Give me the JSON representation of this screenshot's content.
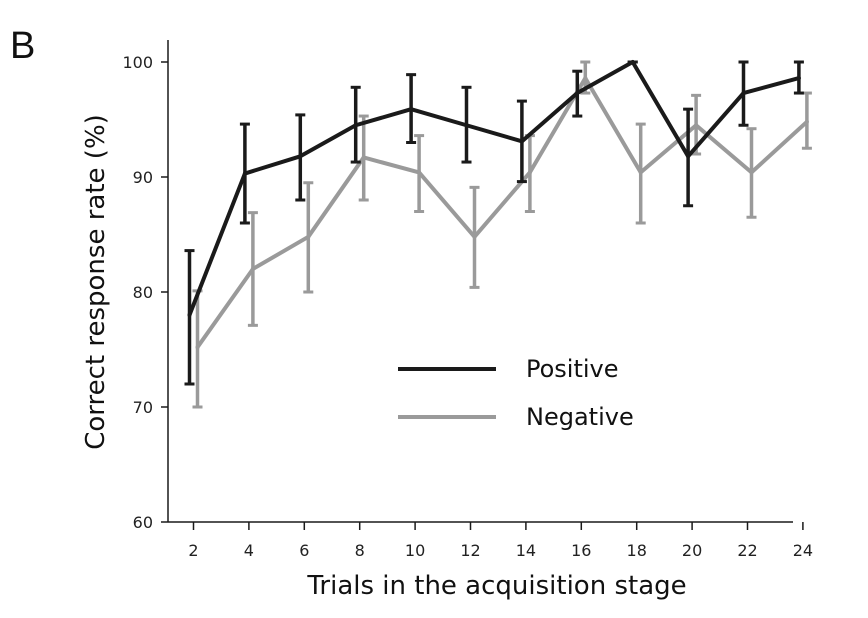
{
  "panel_label": "B",
  "chart_data": {
    "type": "line",
    "title": "",
    "xlabel": "Trials in the acquisition stage",
    "ylabel": "Correct response rate (%)",
    "x": [
      2,
      4,
      6,
      8,
      10,
      12,
      14,
      16,
      18,
      20,
      22,
      24
    ],
    "x_ticks": [
      "2",
      "4",
      "6",
      "8",
      "10",
      "12",
      "14",
      "16",
      "18",
      "20",
      "22",
      "24"
    ],
    "y_ticks": [
      "60",
      "70",
      "80",
      "90",
      "100"
    ],
    "ylim": [
      60,
      100
    ],
    "xlim": [
      0,
      26
    ],
    "grid": false,
    "legend_position": "center-right",
    "series": [
      {
        "name": "Positive",
        "color": "#1a1a1a",
        "values": [
          78,
          90.3,
          91.8,
          94.5,
          95.9,
          94.5,
          93.1,
          97.3,
          100,
          91.8,
          97.3,
          98.6
        ],
        "error_low": [
          72,
          86,
          88,
          91.3,
          93,
          91.3,
          89.6,
          95.3,
          100,
          87.5,
          94.5,
          97.3
        ],
        "error_high": [
          83.6,
          94.6,
          95.4,
          97.8,
          98.9,
          97.8,
          96.6,
          99.2,
          100,
          95.9,
          100,
          100
        ]
      },
      {
        "name": "Negative",
        "color": "#9a9a9a",
        "values": [
          75.2,
          82,
          84.8,
          91.7,
          90.4,
          84.8,
          90.4,
          98.6,
          90.4,
          94.5,
          90.4,
          94.8
        ],
        "error_low": [
          70,
          77.1,
          80,
          88,
          87,
          80.4,
          87,
          97.3,
          86,
          92,
          86.5,
          92.5
        ],
        "error_high": [
          80.1,
          86.9,
          89.5,
          95.3,
          93.6,
          89.1,
          93.6,
          100,
          94.6,
          97.1,
          94.2,
          97.3
        ]
      }
    ]
  }
}
